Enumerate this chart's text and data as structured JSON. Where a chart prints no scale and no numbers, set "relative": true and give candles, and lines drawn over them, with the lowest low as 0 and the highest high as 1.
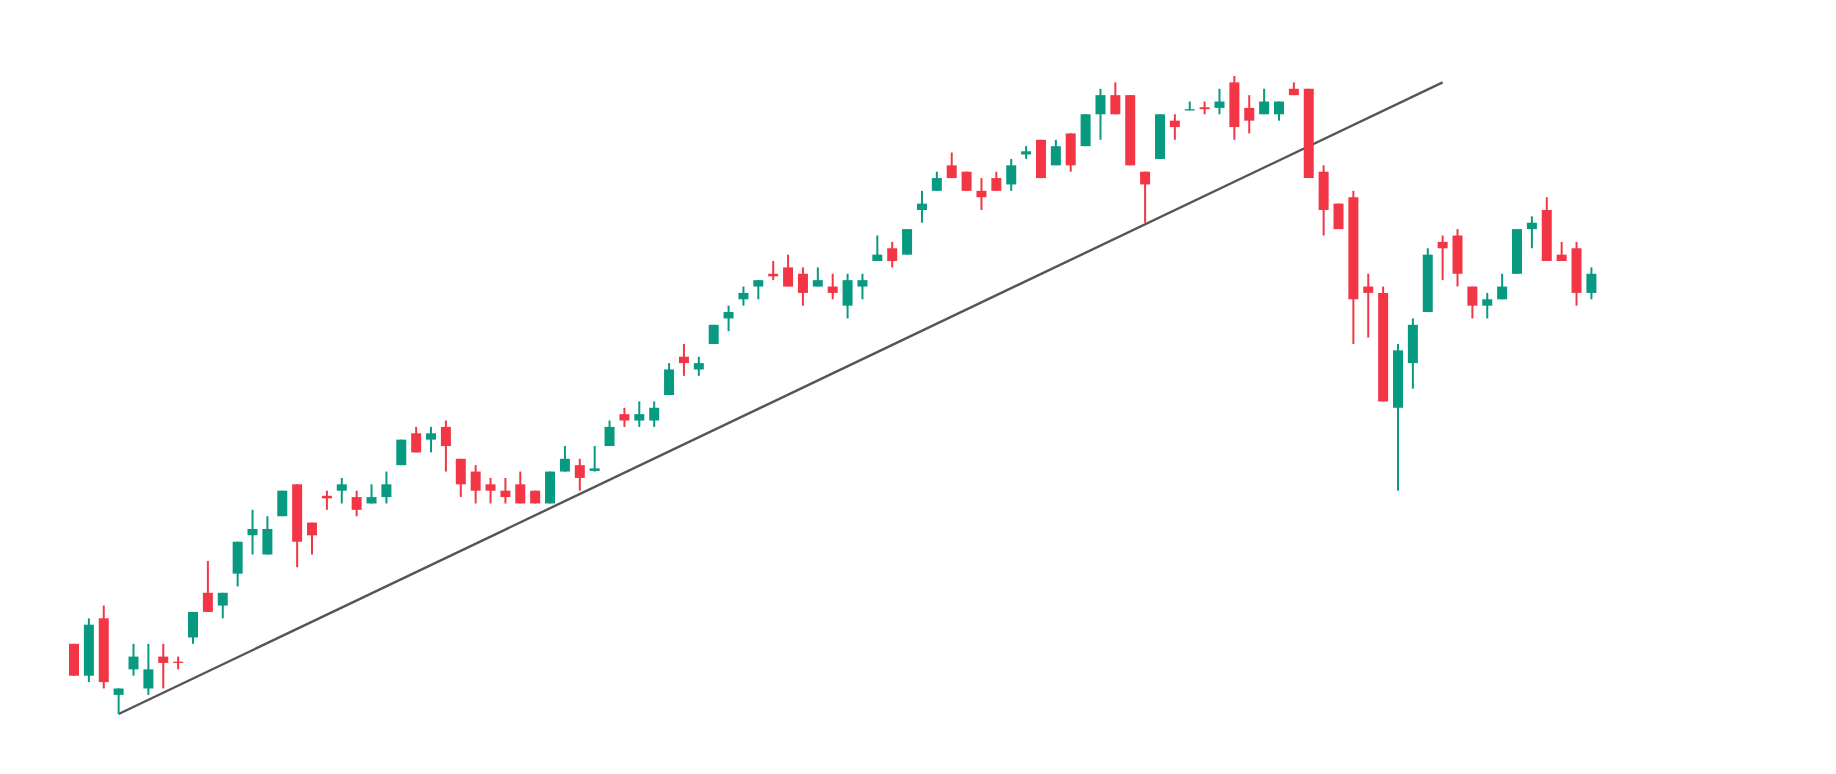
{
  "chart_data": {
    "type": "candlestick",
    "relative": true,
    "categories": [
      null,
      null,
      null,
      null,
      null,
      null,
      null,
      null,
      null,
      null,
      null,
      null,
      null,
      null,
      null,
      null,
      null,
      null,
      null,
      null,
      null,
      null,
      null,
      null,
      null,
      null,
      null,
      null,
      null,
      null,
      null,
      null,
      null,
      null,
      null,
      null,
      null,
      null,
      null,
      null,
      null,
      null,
      null,
      null,
      null,
      null,
      null,
      null,
      null,
      null,
      null,
      null,
      null,
      null,
      null,
      null,
      null,
      null,
      null,
      null,
      null,
      null,
      null,
      null,
      null,
      null,
      null,
      null,
      null,
      null,
      null,
      null,
      null,
      null,
      null,
      null,
      null,
      null,
      null,
      null,
      null,
      null,
      null,
      null,
      null,
      null,
      null,
      null,
      null,
      null,
      null,
      null,
      null,
      null,
      null,
      null,
      null,
      null,
      null,
      null,
      null,
      null,
      null
    ],
    "ohlc": [
      [
        0.11,
        0.11,
        0.06,
        0.06
      ],
      [
        0.06,
        0.15,
        0.05,
        0.14
      ],
      [
        0.15,
        0.17,
        0.04,
        0.05
      ],
      [
        0.03,
        0.04,
        0.0,
        0.04
      ],
      [
        0.07,
        0.11,
        0.06,
        0.09
      ],
      [
        0.04,
        0.11,
        0.03,
        0.07
      ],
      [
        0.09,
        0.11,
        0.04,
        0.08
      ],
      [
        0.082,
        0.09,
        0.07,
        0.08
      ],
      [
        0.12,
        0.16,
        0.11,
        0.16
      ],
      [
        0.19,
        0.24,
        0.16,
        0.16
      ],
      [
        0.17,
        0.19,
        0.15,
        0.19
      ],
      [
        0.22,
        0.27,
        0.2,
        0.27
      ],
      [
        0.28,
        0.32,
        0.25,
        0.29
      ],
      [
        0.25,
        0.31,
        0.25,
        0.29
      ],
      [
        0.31,
        0.35,
        0.31,
        0.35
      ],
      [
        0.36,
        0.36,
        0.23,
        0.27
      ],
      [
        0.3,
        0.3,
        0.25,
        0.28
      ],
      [
        0.342,
        0.35,
        0.32,
        0.338
      ],
      [
        0.35,
        0.37,
        0.33,
        0.36
      ],
      [
        0.34,
        0.35,
        0.31,
        0.32
      ],
      [
        0.33,
        0.36,
        0.33,
        0.34
      ],
      [
        0.34,
        0.38,
        0.33,
        0.36
      ],
      [
        0.39,
        0.43,
        0.39,
        0.43
      ],
      [
        0.44,
        0.45,
        0.41,
        0.41
      ],
      [
        0.43,
        0.45,
        0.41,
        0.44
      ],
      [
        0.45,
        0.46,
        0.38,
        0.42
      ],
      [
        0.4,
        0.4,
        0.34,
        0.36
      ],
      [
        0.38,
        0.39,
        0.33,
        0.35
      ],
      [
        0.36,
        0.37,
        0.33,
        0.35
      ],
      [
        0.35,
        0.37,
        0.33,
        0.34
      ],
      [
        0.36,
        0.38,
        0.33,
        0.33
      ],
      [
        0.35,
        0.35,
        0.33,
        0.33
      ],
      [
        0.33,
        0.38,
        0.33,
        0.38
      ],
      [
        0.38,
        0.42,
        0.38,
        0.4
      ],
      [
        0.39,
        0.4,
        0.35,
        0.37
      ],
      [
        0.381,
        0.42,
        0.38,
        0.385
      ],
      [
        0.42,
        0.46,
        0.42,
        0.45
      ],
      [
        0.47,
        0.48,
        0.45,
        0.46
      ],
      [
        0.46,
        0.49,
        0.45,
        0.47
      ],
      [
        0.46,
        0.49,
        0.45,
        0.48
      ],
      [
        0.5,
        0.55,
        0.5,
        0.54
      ],
      [
        0.56,
        0.58,
        0.53,
        0.55
      ],
      [
        0.54,
        0.56,
        0.53,
        0.55
      ],
      [
        0.58,
        0.61,
        0.58,
        0.61
      ],
      [
        0.62,
        0.64,
        0.6,
        0.63
      ],
      [
        0.65,
        0.67,
        0.64,
        0.66
      ],
      [
        0.67,
        0.68,
        0.65,
        0.68
      ],
      [
        0.69,
        0.71,
        0.68,
        0.686
      ],
      [
        0.7,
        0.72,
        0.67,
        0.67
      ],
      [
        0.69,
        0.7,
        0.64,
        0.66
      ],
      [
        0.67,
        0.7,
        0.67,
        0.68
      ],
      [
        0.67,
        0.69,
        0.65,
        0.66
      ],
      [
        0.64,
        0.69,
        0.62,
        0.68
      ],
      [
        0.67,
        0.69,
        0.65,
        0.68
      ],
      [
        0.71,
        0.75,
        0.71,
        0.72
      ],
      [
        0.73,
        0.74,
        0.7,
        0.71
      ],
      [
        0.72,
        0.76,
        0.72,
        0.76
      ],
      [
        0.79,
        0.82,
        0.77,
        0.8
      ],
      [
        0.82,
        0.85,
        0.82,
        0.84
      ],
      [
        0.86,
        0.88,
        0.84,
        0.84
      ],
      [
        0.85,
        0.85,
        0.82,
        0.82
      ],
      [
        0.82,
        0.84,
        0.79,
        0.81
      ],
      [
        0.84,
        0.85,
        0.82,
        0.82
      ],
      [
        0.83,
        0.87,
        0.82,
        0.86
      ],
      [
        0.877,
        0.89,
        0.87,
        0.882
      ],
      [
        0.9,
        0.9,
        0.84,
        0.84
      ],
      [
        0.86,
        0.9,
        0.86,
        0.89
      ],
      [
        0.91,
        0.91,
        0.85,
        0.86
      ],
      [
        0.89,
        0.94,
        0.89,
        0.94
      ],
      [
        0.94,
        0.98,
        0.9,
        0.97
      ],
      [
        0.97,
        0.99,
        0.94,
        0.94
      ],
      [
        0.97,
        0.97,
        0.86,
        0.86
      ],
      [
        0.85,
        0.85,
        0.77,
        0.83
      ],
      [
        0.87,
        0.94,
        0.87,
        0.94
      ],
      [
        0.93,
        0.94,
        0.9,
        0.92
      ],
      [
        0.946,
        0.96,
        0.946,
        0.948
      ],
      [
        0.951,
        0.96,
        0.94,
        0.948
      ],
      [
        0.95,
        0.98,
        0.94,
        0.96
      ],
      [
        0.99,
        1.0,
        0.9,
        0.92
      ],
      [
        0.95,
        0.97,
        0.91,
        0.93
      ],
      [
        0.94,
        0.98,
        0.94,
        0.96
      ],
      [
        0.94,
        0.96,
        0.93,
        0.96
      ],
      [
        0.98,
        0.99,
        0.97,
        0.97
      ],
      [
        0.98,
        0.98,
        0.84,
        0.84
      ],
      [
        0.85,
        0.86,
        0.75,
        0.79
      ],
      [
        0.8,
        0.8,
        0.76,
        0.76
      ],
      [
        0.81,
        0.82,
        0.58,
        0.65
      ],
      [
        0.67,
        0.69,
        0.59,
        0.66
      ],
      [
        0.66,
        0.67,
        0.49,
        0.49
      ],
      [
        0.48,
        0.58,
        0.35,
        0.57
      ],
      [
        0.55,
        0.62,
        0.51,
        0.61
      ],
      [
        0.63,
        0.73,
        0.63,
        0.72
      ],
      [
        0.74,
        0.75,
        0.68,
        0.73
      ],
      [
        0.75,
        0.76,
        0.67,
        0.69
      ],
      [
        0.67,
        0.67,
        0.62,
        0.64
      ],
      [
        0.64,
        0.66,
        0.62,
        0.65
      ],
      [
        0.65,
        0.69,
        0.65,
        0.67
      ],
      [
        0.69,
        0.76,
        0.69,
        0.76
      ],
      [
        0.76,
        0.78,
        0.73,
        0.77
      ],
      [
        0.79,
        0.81,
        0.71,
        0.71
      ],
      [
        0.72,
        0.74,
        0.71,
        0.71
      ],
      [
        0.73,
        0.74,
        0.64,
        0.66
      ],
      [
        0.66,
        0.7,
        0.65,
        0.69
      ]
    ],
    "colors": [
      "#f23645",
      "#089981",
      "#f23645",
      "#089981",
      "#089981",
      "#089981",
      "#f23645",
      "#f23645",
      "#089981",
      "#f23645",
      "#089981",
      "#089981",
      "#089981",
      "#089981",
      "#089981",
      "#f23645",
      "#f23645",
      "#f23645",
      "#089981",
      "#f23645",
      "#089981",
      "#089981",
      "#089981",
      "#f23645",
      "#089981",
      "#f23645",
      "#f23645",
      "#f23645",
      "#f23645",
      "#f23645",
      "#f23645",
      "#f23645",
      "#089981",
      "#089981",
      "#f23645",
      "#089981",
      "#089981",
      "#f23645",
      "#089981",
      "#089981",
      "#089981",
      "#f23645",
      "#089981",
      "#089981",
      "#089981",
      "#089981",
      "#089981",
      "#f23645",
      "#f23645",
      "#f23645",
      "#089981",
      "#f23645",
      "#089981",
      "#089981",
      "#089981",
      "#f23645",
      "#089981",
      "#089981",
      "#089981",
      "#f23645",
      "#f23645",
      "#f23645",
      "#f23645",
      "#089981",
      "#089981",
      "#f23645",
      "#089981",
      "#f23645",
      "#089981",
      "#089981",
      "#f23645",
      "#f23645",
      "#f23645",
      "#089981",
      "#f23645",
      "#089981",
      "#f23645",
      "#089981",
      "#f23645",
      "#f23645",
      "#089981",
      "#089981",
      "#f23645",
      "#f23645",
      "#f23645",
      "#f23645",
      "#f23645",
      "#f23645",
      "#f23645",
      "#089981",
      "#089981",
      "#089981",
      "#f23645",
      "#f23645",
      "#f23645",
      "#089981",
      "#089981",
      "#089981",
      "#089981",
      "#f23645",
      "#f23645",
      "#f23645",
      "#089981"
    ],
    "series": [
      {
        "type": "line",
        "color": "#555555",
        "values": [
          null,
          null,
          null,
          0.0,
          null,
          null,
          null,
          null,
          null,
          null,
          null,
          null,
          null,
          null,
          null,
          null,
          null,
          null,
          null,
          null,
          null,
          null,
          null,
          null,
          null,
          null,
          null,
          null,
          null,
          null,
          null,
          null,
          null,
          null,
          null,
          null,
          null,
          null,
          null,
          null,
          null,
          null,
          null,
          null,
          null,
          null,
          null,
          null,
          null,
          null,
          null,
          null,
          null,
          null,
          null,
          null,
          null,
          null,
          null,
          null,
          null,
          null,
          null,
          null,
          null,
          null,
          null,
          null,
          null,
          null,
          null,
          null,
          null,
          null,
          null,
          null,
          null,
          null,
          null,
          null,
          null,
          null,
          null,
          null,
          null,
          null,
          null,
          null,
          null,
          null,
          null,
          null,
          0.99,
          null,
          null,
          null,
          null,
          null,
          null,
          null,
          null,
          null,
          null
        ]
      }
    ]
  }
}
